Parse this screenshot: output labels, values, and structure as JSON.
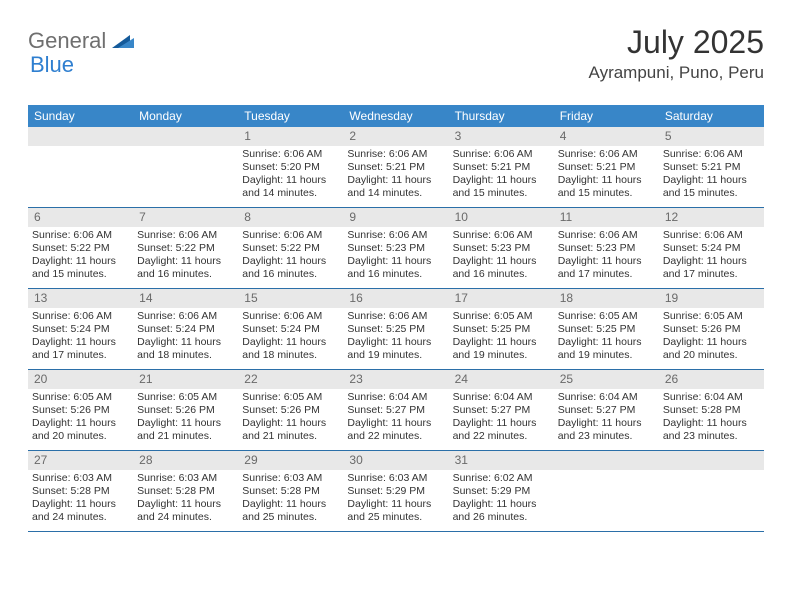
{
  "logo": {
    "part1": "General",
    "part2": "Blue"
  },
  "title": "July 2025",
  "subtitle": "Ayrampuni, Puno, Peru",
  "colors": {
    "header_bg": "#3886c8",
    "header_fg": "#ffffff",
    "daynum_bg": "#e8e8e8",
    "daynum_fg": "#6a6a6a",
    "cell_fg": "#333333",
    "rule": "#2b6fa8",
    "logo_gray": "#6f6f6f",
    "logo_blue": "#2f7fd0"
  },
  "typography": {
    "title_fontsize": 32,
    "subtitle_fontsize": 17,
    "dow_fontsize": 12,
    "daynum_fontsize": 12,
    "cell_fontsize": 10.5
  },
  "dow": [
    "Sunday",
    "Monday",
    "Tuesday",
    "Wednesday",
    "Thursday",
    "Friday",
    "Saturday"
  ],
  "weeks": [
    [
      null,
      null,
      {
        "n": "1",
        "sr": "Sunrise: 6:06 AM",
        "ss": "Sunset: 5:20 PM",
        "d1": "Daylight: 11 hours",
        "d2": "and 14 minutes."
      },
      {
        "n": "2",
        "sr": "Sunrise: 6:06 AM",
        "ss": "Sunset: 5:21 PM",
        "d1": "Daylight: 11 hours",
        "d2": "and 14 minutes."
      },
      {
        "n": "3",
        "sr": "Sunrise: 6:06 AM",
        "ss": "Sunset: 5:21 PM",
        "d1": "Daylight: 11 hours",
        "d2": "and 15 minutes."
      },
      {
        "n": "4",
        "sr": "Sunrise: 6:06 AM",
        "ss": "Sunset: 5:21 PM",
        "d1": "Daylight: 11 hours",
        "d2": "and 15 minutes."
      },
      {
        "n": "5",
        "sr": "Sunrise: 6:06 AM",
        "ss": "Sunset: 5:21 PM",
        "d1": "Daylight: 11 hours",
        "d2": "and 15 minutes."
      }
    ],
    [
      {
        "n": "6",
        "sr": "Sunrise: 6:06 AM",
        "ss": "Sunset: 5:22 PM",
        "d1": "Daylight: 11 hours",
        "d2": "and 15 minutes."
      },
      {
        "n": "7",
        "sr": "Sunrise: 6:06 AM",
        "ss": "Sunset: 5:22 PM",
        "d1": "Daylight: 11 hours",
        "d2": "and 16 minutes."
      },
      {
        "n": "8",
        "sr": "Sunrise: 6:06 AM",
        "ss": "Sunset: 5:22 PM",
        "d1": "Daylight: 11 hours",
        "d2": "and 16 minutes."
      },
      {
        "n": "9",
        "sr": "Sunrise: 6:06 AM",
        "ss": "Sunset: 5:23 PM",
        "d1": "Daylight: 11 hours",
        "d2": "and 16 minutes."
      },
      {
        "n": "10",
        "sr": "Sunrise: 6:06 AM",
        "ss": "Sunset: 5:23 PM",
        "d1": "Daylight: 11 hours",
        "d2": "and 16 minutes."
      },
      {
        "n": "11",
        "sr": "Sunrise: 6:06 AM",
        "ss": "Sunset: 5:23 PM",
        "d1": "Daylight: 11 hours",
        "d2": "and 17 minutes."
      },
      {
        "n": "12",
        "sr": "Sunrise: 6:06 AM",
        "ss": "Sunset: 5:24 PM",
        "d1": "Daylight: 11 hours",
        "d2": "and 17 minutes."
      }
    ],
    [
      {
        "n": "13",
        "sr": "Sunrise: 6:06 AM",
        "ss": "Sunset: 5:24 PM",
        "d1": "Daylight: 11 hours",
        "d2": "and 17 minutes."
      },
      {
        "n": "14",
        "sr": "Sunrise: 6:06 AM",
        "ss": "Sunset: 5:24 PM",
        "d1": "Daylight: 11 hours",
        "d2": "and 18 minutes."
      },
      {
        "n": "15",
        "sr": "Sunrise: 6:06 AM",
        "ss": "Sunset: 5:24 PM",
        "d1": "Daylight: 11 hours",
        "d2": "and 18 minutes."
      },
      {
        "n": "16",
        "sr": "Sunrise: 6:06 AM",
        "ss": "Sunset: 5:25 PM",
        "d1": "Daylight: 11 hours",
        "d2": "and 19 minutes."
      },
      {
        "n": "17",
        "sr": "Sunrise: 6:05 AM",
        "ss": "Sunset: 5:25 PM",
        "d1": "Daylight: 11 hours",
        "d2": "and 19 minutes."
      },
      {
        "n": "18",
        "sr": "Sunrise: 6:05 AM",
        "ss": "Sunset: 5:25 PM",
        "d1": "Daylight: 11 hours",
        "d2": "and 19 minutes."
      },
      {
        "n": "19",
        "sr": "Sunrise: 6:05 AM",
        "ss": "Sunset: 5:26 PM",
        "d1": "Daylight: 11 hours",
        "d2": "and 20 minutes."
      }
    ],
    [
      {
        "n": "20",
        "sr": "Sunrise: 6:05 AM",
        "ss": "Sunset: 5:26 PM",
        "d1": "Daylight: 11 hours",
        "d2": "and 20 minutes."
      },
      {
        "n": "21",
        "sr": "Sunrise: 6:05 AM",
        "ss": "Sunset: 5:26 PM",
        "d1": "Daylight: 11 hours",
        "d2": "and 21 minutes."
      },
      {
        "n": "22",
        "sr": "Sunrise: 6:05 AM",
        "ss": "Sunset: 5:26 PM",
        "d1": "Daylight: 11 hours",
        "d2": "and 21 minutes."
      },
      {
        "n": "23",
        "sr": "Sunrise: 6:04 AM",
        "ss": "Sunset: 5:27 PM",
        "d1": "Daylight: 11 hours",
        "d2": "and 22 minutes."
      },
      {
        "n": "24",
        "sr": "Sunrise: 6:04 AM",
        "ss": "Sunset: 5:27 PM",
        "d1": "Daylight: 11 hours",
        "d2": "and 22 minutes."
      },
      {
        "n": "25",
        "sr": "Sunrise: 6:04 AM",
        "ss": "Sunset: 5:27 PM",
        "d1": "Daylight: 11 hours",
        "d2": "and 23 minutes."
      },
      {
        "n": "26",
        "sr": "Sunrise: 6:04 AM",
        "ss": "Sunset: 5:28 PM",
        "d1": "Daylight: 11 hours",
        "d2": "and 23 minutes."
      }
    ],
    [
      {
        "n": "27",
        "sr": "Sunrise: 6:03 AM",
        "ss": "Sunset: 5:28 PM",
        "d1": "Daylight: 11 hours",
        "d2": "and 24 minutes."
      },
      {
        "n": "28",
        "sr": "Sunrise: 6:03 AM",
        "ss": "Sunset: 5:28 PM",
        "d1": "Daylight: 11 hours",
        "d2": "and 24 minutes."
      },
      {
        "n": "29",
        "sr": "Sunrise: 6:03 AM",
        "ss": "Sunset: 5:28 PM",
        "d1": "Daylight: 11 hours",
        "d2": "and 25 minutes."
      },
      {
        "n": "30",
        "sr": "Sunrise: 6:03 AM",
        "ss": "Sunset: 5:29 PM",
        "d1": "Daylight: 11 hours",
        "d2": "and 25 minutes."
      },
      {
        "n": "31",
        "sr": "Sunrise: 6:02 AM",
        "ss": "Sunset: 5:29 PM",
        "d1": "Daylight: 11 hours",
        "d2": "and 26 minutes."
      },
      null,
      null
    ]
  ]
}
